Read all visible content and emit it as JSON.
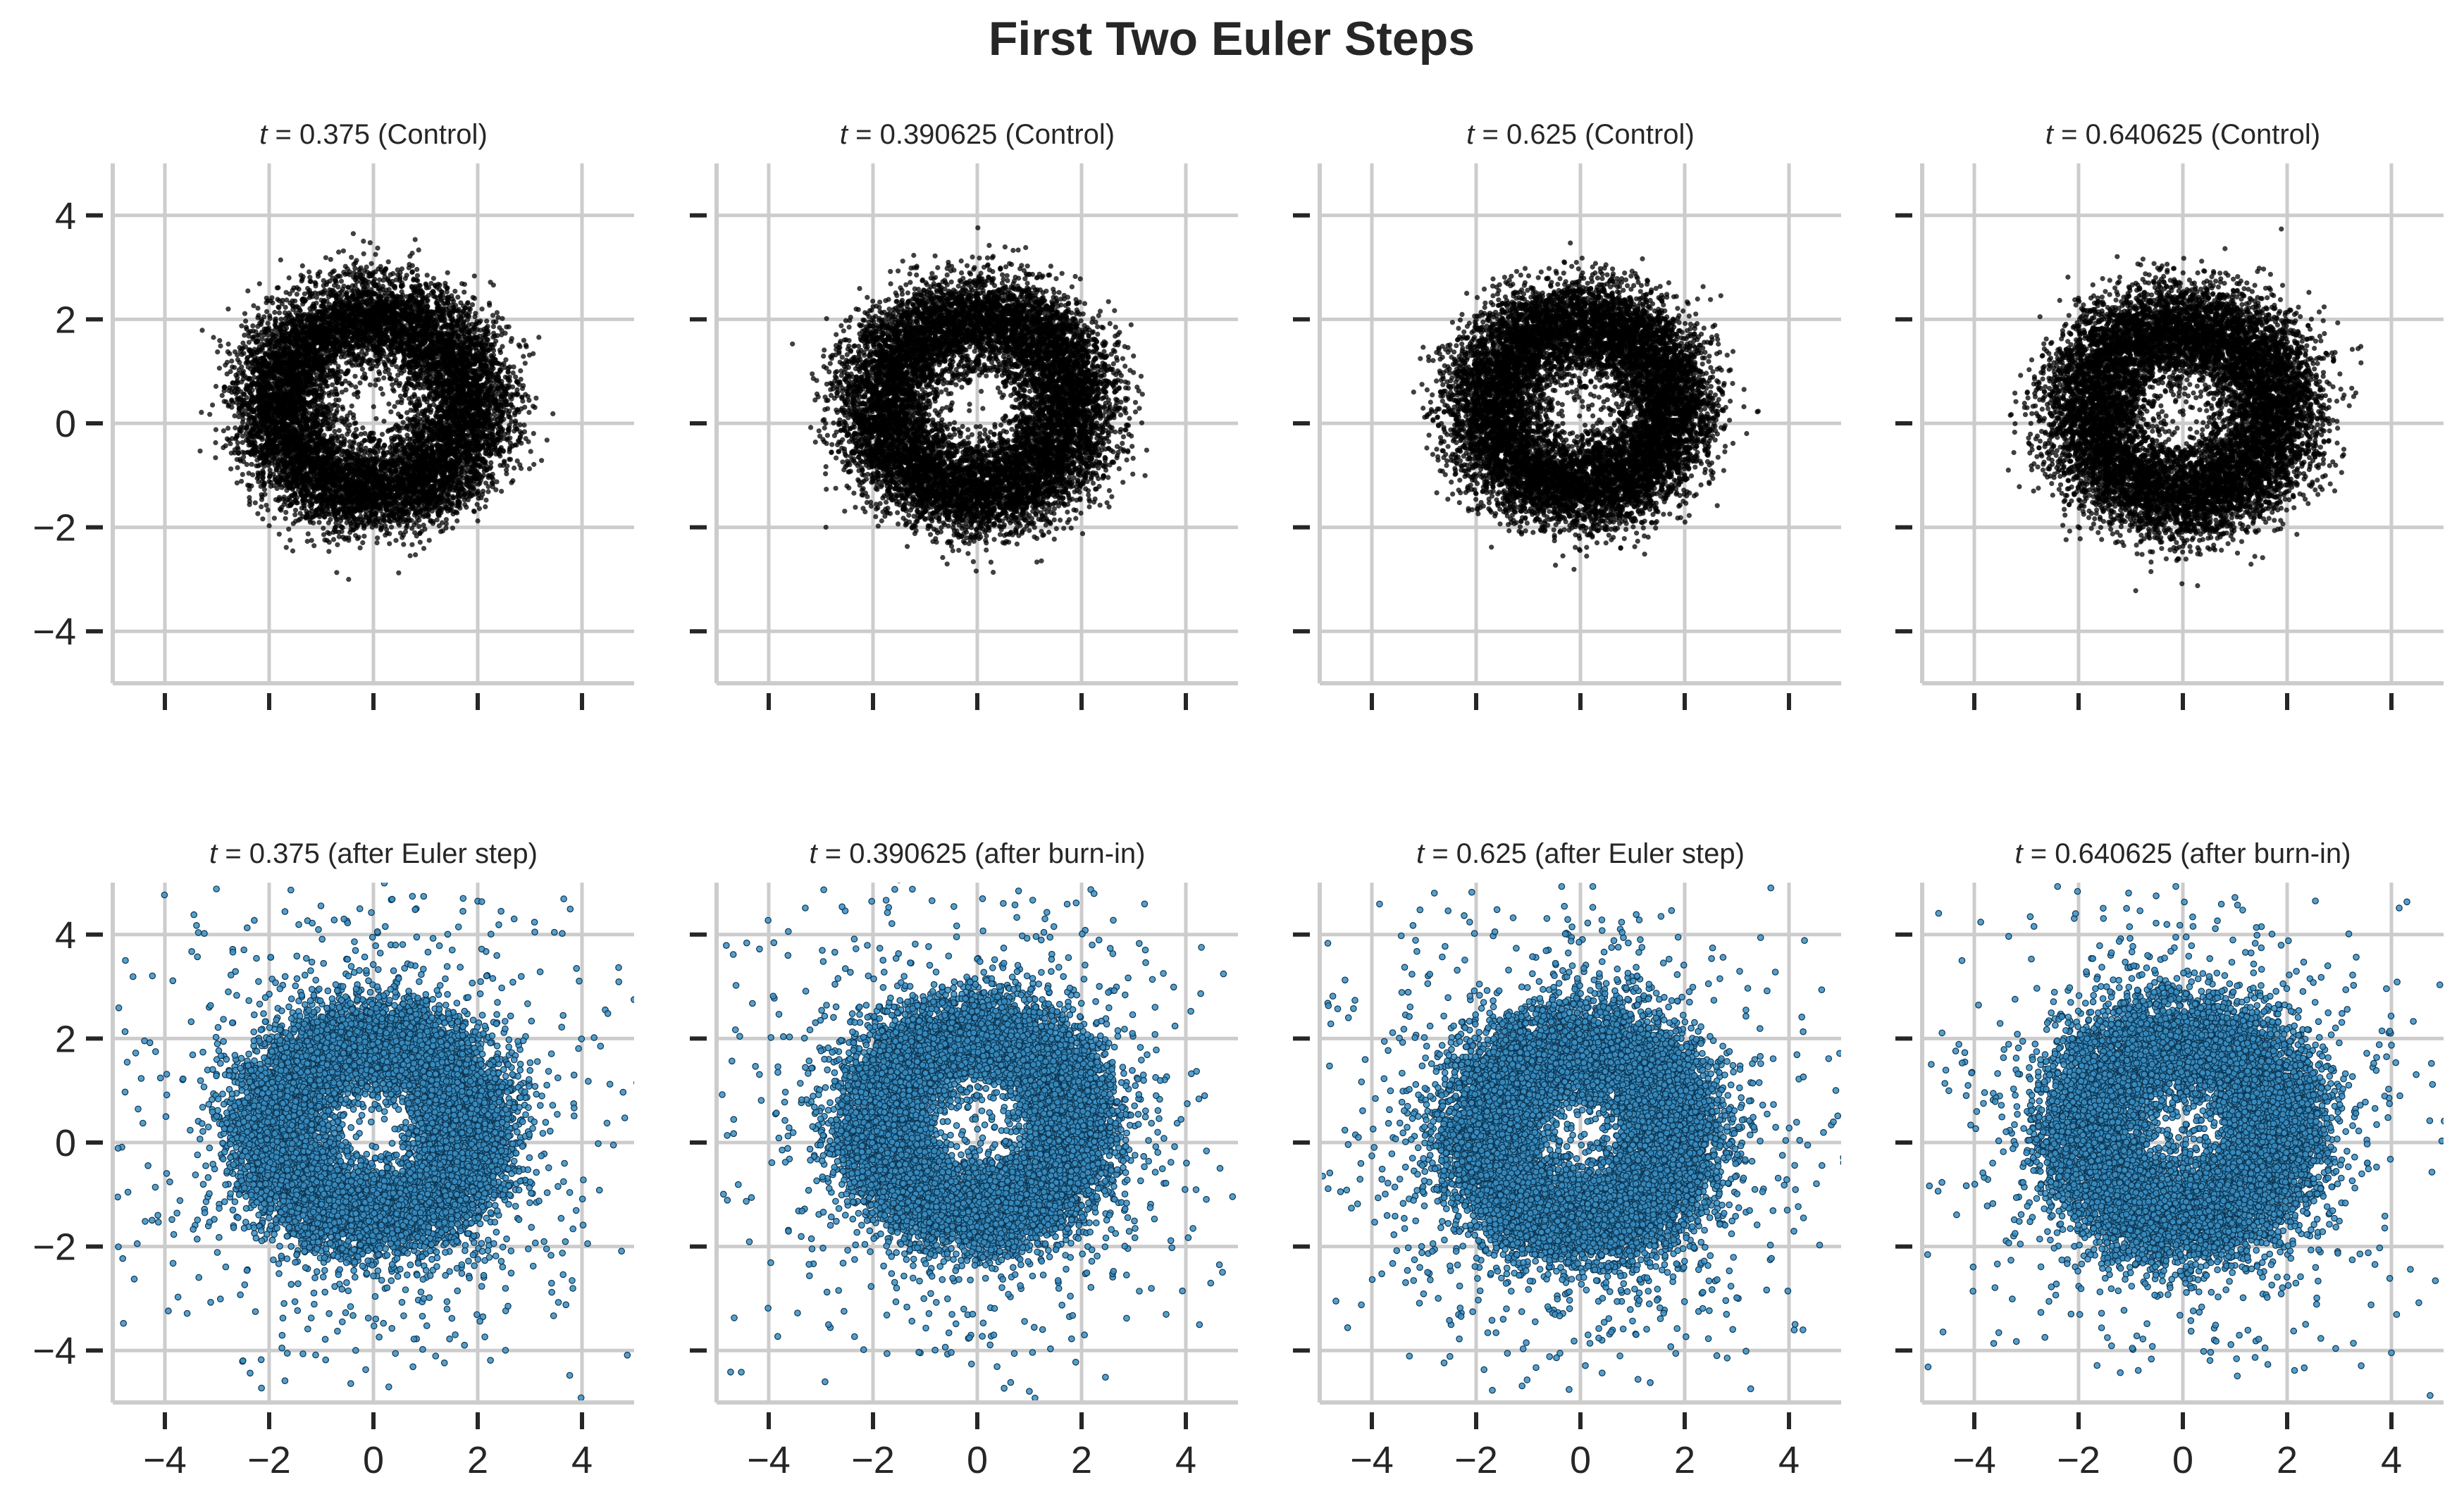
{
  "figure": {
    "title": "First Two Euler Steps"
  },
  "colors": {
    "control_points": "#000000",
    "step_points_fill": "#3a8fc4",
    "step_points_edge": "#0d3550",
    "grid": "#cccccc",
    "text": "#262626"
  },
  "chart_data": [
    {
      "type": "scatter",
      "row": 1,
      "col": 1,
      "title_var": "t",
      "title_eq": " = ",
      "title_value": "0.375",
      "title_suffix": " (Control)",
      "xlim": [
        -5,
        5
      ],
      "ylim": [
        -5,
        5
      ],
      "xticks": [
        -4,
        -2,
        0,
        2,
        4
      ],
      "yticks": [
        -4,
        -2,
        0,
        2,
        4
      ],
      "x_tick_labels_visible": false,
      "y_tick_labels_visible": true,
      "distribution": {
        "shape": "annulus",
        "center": [
          0.0,
          0.6
        ],
        "inner_radius": 1.0,
        "outer_radius": 2.8,
        "n_points": 10000,
        "outliers": 0
      },
      "marker_style": "control"
    },
    {
      "type": "scatter",
      "row": 1,
      "col": 2,
      "title_var": "t",
      "title_eq": " = ",
      "title_value": "0.390625",
      "title_suffix": " (Control)",
      "xlim": [
        -5,
        5
      ],
      "ylim": [
        -5,
        5
      ],
      "xticks": [
        -4,
        -2,
        0,
        2,
        4
      ],
      "yticks": [
        -4,
        -2,
        0,
        2,
        4
      ],
      "x_tick_labels_visible": false,
      "y_tick_labels_visible": false,
      "distribution": {
        "shape": "annulus",
        "center": [
          0.0,
          0.6
        ],
        "inner_radius": 1.0,
        "outer_radius": 2.8,
        "n_points": 10000,
        "outliers": 0
      },
      "marker_style": "control"
    },
    {
      "type": "scatter",
      "row": 1,
      "col": 3,
      "title_var": "t",
      "title_eq": " = ",
      "title_value": "0.625",
      "title_suffix": " (Control)",
      "xlim": [
        -5,
        5
      ],
      "ylim": [
        -5,
        5
      ],
      "xticks": [
        -4,
        -2,
        0,
        2,
        4
      ],
      "yticks": [
        -4,
        -2,
        0,
        2,
        4
      ],
      "x_tick_labels_visible": false,
      "y_tick_labels_visible": false,
      "distribution": {
        "shape": "annulus",
        "center": [
          0.0,
          0.6
        ],
        "inner_radius": 0.9,
        "outer_radius": 2.7,
        "n_points": 10000,
        "outliers": 0
      },
      "marker_style": "control"
    },
    {
      "type": "scatter",
      "row": 1,
      "col": 4,
      "title_var": "t",
      "title_eq": " = ",
      "title_value": "0.640625",
      "title_suffix": " (Control)",
      "xlim": [
        -5,
        5
      ],
      "ylim": [
        -5,
        5
      ],
      "xticks": [
        -4,
        -2,
        0,
        2,
        4
      ],
      "yticks": [
        -4,
        -2,
        0,
        2,
        4
      ],
      "x_tick_labels_visible": false,
      "y_tick_labels_visible": false,
      "distribution": {
        "shape": "annulus",
        "center": [
          0.0,
          0.5
        ],
        "inner_radius": 0.9,
        "outer_radius": 2.8,
        "n_points": 10000,
        "outliers": 0
      },
      "marker_style": "control"
    },
    {
      "type": "scatter",
      "row": 2,
      "col": 1,
      "title_var": "t",
      "title_eq": " = ",
      "title_value": "0.375",
      "title_suffix": " (after Euler step)",
      "xlim": [
        -5,
        5
      ],
      "ylim": [
        -5,
        5
      ],
      "xticks": [
        -4,
        -2,
        0,
        2,
        4
      ],
      "yticks": [
        -4,
        -2,
        0,
        2,
        4
      ],
      "x_tick_labels_visible": true,
      "y_tick_labels_visible": true,
      "distribution": {
        "shape": "annulus",
        "center": [
          0.0,
          0.5
        ],
        "inner_radius": 1.0,
        "outer_radius": 2.8,
        "n_points": 10000,
        "outliers": 700
      },
      "marker_style": "step"
    },
    {
      "type": "scatter",
      "row": 2,
      "col": 2,
      "title_var": "t",
      "title_eq": " = ",
      "title_value": "0.390625",
      "title_suffix": " (after burn-in)",
      "xlim": [
        -5,
        5
      ],
      "ylim": [
        -5,
        5
      ],
      "xticks": [
        -4,
        -2,
        0,
        2,
        4
      ],
      "yticks": [
        -4,
        -2,
        0,
        2,
        4
      ],
      "x_tick_labels_visible": true,
      "y_tick_labels_visible": false,
      "distribution": {
        "shape": "annulus",
        "center": [
          0.0,
          0.6
        ],
        "inner_radius": 1.0,
        "outer_radius": 2.8,
        "n_points": 10000,
        "outliers": 700
      },
      "marker_style": "step"
    },
    {
      "type": "scatter",
      "row": 2,
      "col": 3,
      "title_var": "t",
      "title_eq": " = ",
      "title_value": "0.625",
      "title_suffix": " (after Euler step)",
      "xlim": [
        -5,
        5
      ],
      "ylim": [
        -5,
        5
      ],
      "xticks": [
        -4,
        -2,
        0,
        2,
        4
      ],
      "yticks": [
        -4,
        -2,
        0,
        2,
        4
      ],
      "x_tick_labels_visible": true,
      "y_tick_labels_visible": false,
      "distribution": {
        "shape": "annulus",
        "center": [
          0.0,
          0.4
        ],
        "inner_radius": 0.9,
        "outer_radius": 2.8,
        "n_points": 10000,
        "outliers": 900
      },
      "marker_style": "step"
    },
    {
      "type": "scatter",
      "row": 2,
      "col": 4,
      "title_var": "t",
      "title_eq": " = ",
      "title_value": "0.640625",
      "title_suffix": " (after burn-in)",
      "xlim": [
        -5,
        5
      ],
      "ylim": [
        -5,
        5
      ],
      "xticks": [
        -4,
        -2,
        0,
        2,
        4
      ],
      "yticks": [
        -4,
        -2,
        0,
        2,
        4
      ],
      "x_tick_labels_visible": true,
      "y_tick_labels_visible": false,
      "distribution": {
        "shape": "annulus",
        "center": [
          0.0,
          0.5
        ],
        "inner_radius": 0.9,
        "outer_radius": 2.9,
        "n_points": 10000,
        "outliers": 700
      },
      "marker_style": "step"
    }
  ]
}
